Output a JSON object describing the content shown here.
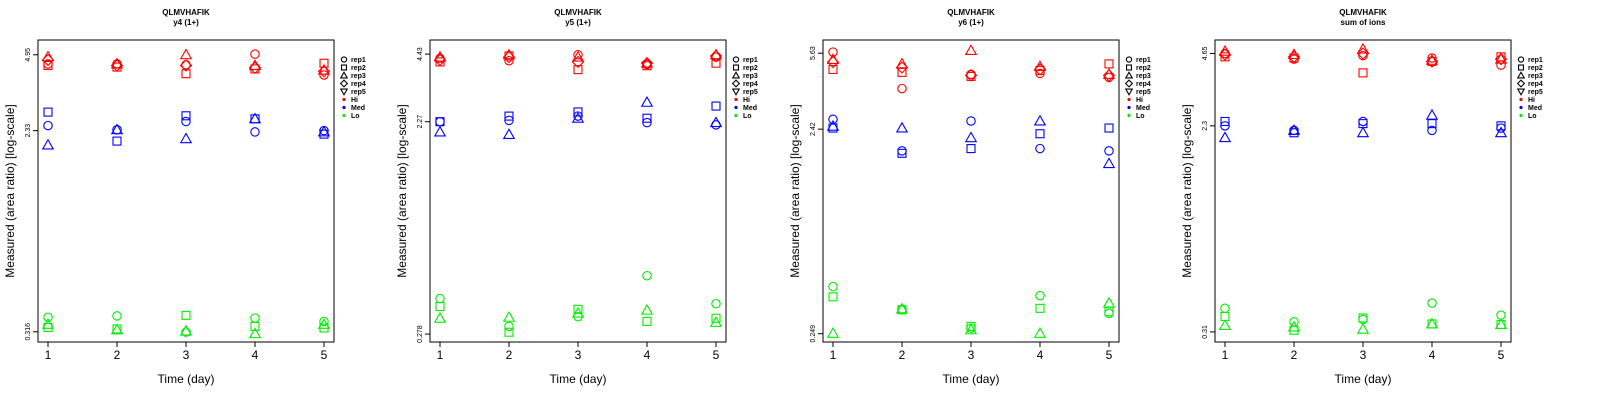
{
  "chart_data": [
    {
      "type": "scatter",
      "title": "QLMVHAFIK",
      "subtitle": "y4 (1+)",
      "xlabel": "Time (day)",
      "ylabel": "Measured (area ratio) [log-scale]",
      "yscale": "log",
      "x": [
        1,
        2,
        3,
        4,
        5
      ],
      "yticks": [
        "4.95",
        "2.33",
        "0.316"
      ],
      "ylim": [
        0.3,
        5.4
      ],
      "series": [
        {
          "name": "Hi rep1",
          "level": "Hi",
          "rep": "rep1",
          "values": [
            4.52,
            4.52,
            4.48,
            4.98,
            4.05
          ]
        },
        {
          "name": "Hi rep2",
          "level": "Hi",
          "rep": "rep2",
          "values": [
            4.45,
            4.38,
            4.1,
            4.3,
            4.55
          ]
        },
        {
          "name": "Hi rep3",
          "level": "Hi",
          "rep": "rep3",
          "values": [
            4.85,
            4.52,
            4.95,
            4.45,
            4.25
          ]
        },
        {
          "name": "Hi rep4",
          "level": "Hi",
          "rep": "rep4",
          "values": [
            4.7,
            4.45,
            4.45,
            4.35,
            4.2
          ]
        },
        {
          "name": "Med rep1",
          "level": "Med",
          "rep": "rep1",
          "values": [
            2.45,
            2.35,
            2.55,
            2.3,
            2.33
          ]
        },
        {
          "name": "Med rep2",
          "level": "Med",
          "rep": "rep2",
          "values": [
            2.8,
            2.1,
            2.7,
            2.62,
            2.25
          ]
        },
        {
          "name": "Med rep3",
          "level": "Med",
          "rep": "rep3",
          "values": [
            2.02,
            2.35,
            2.15,
            2.62,
            2.3
          ]
        },
        {
          "name": "Lo rep1",
          "level": "Lo",
          "rep": "rep1",
          "values": [
            0.365,
            0.37,
            0.315,
            0.362,
            0.35
          ]
        },
        {
          "name": "Lo rep2",
          "level": "Lo",
          "rep": "rep2",
          "values": [
            0.33,
            0.325,
            0.372,
            0.333,
            0.328
          ]
        },
        {
          "name": "Lo rep3",
          "level": "Lo",
          "rep": "rep3",
          "values": [
            0.34,
            0.322,
            0.318,
            0.31,
            0.34
          ]
        }
      ],
      "legend": {
        "position": "right",
        "reps": [
          "rep1",
          "rep2",
          "rep3",
          "rep4",
          "rep5"
        ],
        "levels": [
          "Hi",
          "Med",
          "Lo"
        ]
      }
    },
    {
      "type": "scatter",
      "title": "QLMVHAFIK",
      "subtitle": "y5 (1+)",
      "xlabel": "Time (day)",
      "ylabel": "Measured (area ratio) [log-scale]",
      "yscale": "log",
      "x": [
        1,
        2,
        3,
        4,
        5
      ],
      "yticks": [
        "4.43",
        "2.27",
        "0.278"
      ],
      "ylim": [
        0.27,
        4.8
      ],
      "series": [
        {
          "name": "Hi rep1",
          "level": "Hi",
          "rep": "rep1",
          "values": [
            4.25,
            4.15,
            4.4,
            4.0,
            4.3
          ]
        },
        {
          "name": "Hi rep2",
          "level": "Hi",
          "rep": "rep2",
          "values": [
            4.1,
            4.35,
            3.8,
            3.95,
            4.05
          ]
        },
        {
          "name": "Hi rep3",
          "level": "Hi",
          "rep": "rep3",
          "values": [
            4.3,
            4.4,
            4.3,
            4.05,
            4.4
          ]
        },
        {
          "name": "Hi rep4",
          "level": "Hi",
          "rep": "rep4",
          "values": [
            4.18,
            4.3,
            4.1,
            4.05,
            4.35
          ]
        },
        {
          "name": "Med rep1",
          "level": "Med",
          "rep": "rep1",
          "values": [
            2.27,
            2.3,
            2.4,
            2.25,
            2.2
          ]
        },
        {
          "name": "Med rep2",
          "level": "Med",
          "rep": "rep2",
          "values": [
            2.27,
            2.4,
            2.5,
            2.35,
            2.65
          ]
        },
        {
          "name": "Med rep3",
          "level": "Med",
          "rep": "rep3",
          "values": [
            2.05,
            2.0,
            2.35,
            2.75,
            2.25
          ]
        },
        {
          "name": "Lo rep1",
          "level": "Lo",
          "rep": "rep1",
          "values": [
            0.395,
            0.3,
            0.33,
            0.495,
            0.375
          ]
        },
        {
          "name": "Lo rep2",
          "level": "Lo",
          "rep": "rep2",
          "values": [
            0.365,
            0.283,
            0.355,
            0.315,
            0.325
          ]
        },
        {
          "name": "Lo rep3",
          "level": "Lo",
          "rep": "rep3",
          "values": [
            0.325,
            0.328,
            0.342,
            0.352,
            0.312
          ]
        }
      ],
      "legend": {
        "position": "right",
        "reps": [
          "rep1",
          "rep2",
          "rep3",
          "rep4",
          "rep5"
        ],
        "levels": [
          "Hi",
          "Med",
          "Lo"
        ]
      }
    },
    {
      "type": "scatter",
      "title": "QLMVHAFIK",
      "subtitle": "y6 (1+)",
      "xlabel": "Time (day)",
      "ylabel": "Measured (area ratio) [log-scale]",
      "yscale": "log",
      "x": [
        1,
        2,
        3,
        4,
        5
      ],
      "yticks": [
        "5.63",
        "2.42",
        "0.249"
      ],
      "ylim": [
        0.24,
        6.1
      ],
      "series": [
        {
          "name": "Hi rep1",
          "level": "Hi",
          "rep": "rep1",
          "values": [
            5.7,
            3.8,
            4.45,
            4.5,
            4.3
          ]
        },
        {
          "name": "Hi rep2",
          "level": "Hi",
          "rep": "rep2",
          "values": [
            4.7,
            4.55,
            4.35,
            4.65,
            5.0
          ]
        },
        {
          "name": "Hi rep3",
          "level": "Hi",
          "rep": "rep3",
          "values": [
            5.25,
            5.0,
            5.8,
            4.85,
            4.45
          ]
        },
        {
          "name": "Hi rep4",
          "level": "Hi",
          "rep": "rep4",
          "values": [
            5.1,
            4.8,
            4.4,
            4.7,
            4.4
          ]
        },
        {
          "name": "Med rep1",
          "level": "Med",
          "rep": "rep1",
          "values": [
            2.7,
            1.9,
            2.65,
            1.95,
            1.9
          ]
        },
        {
          "name": "Med rep2",
          "level": "Med",
          "rep": "rep2",
          "values": [
            2.45,
            1.85,
            1.95,
            2.3,
            2.45
          ]
        },
        {
          "name": "Med rep3",
          "level": "Med",
          "rep": "rep3",
          "values": [
            2.5,
            2.45,
            2.2,
            2.65,
            1.65
          ]
        },
        {
          "name": "Lo rep1",
          "level": "Lo",
          "rep": "rep1",
          "values": [
            0.42,
            0.325,
            0.265,
            0.38,
            0.312
          ]
        },
        {
          "name": "Lo rep2",
          "level": "Lo",
          "rep": "rep2",
          "values": [
            0.375,
            0.325,
            0.27,
            0.33,
            0.318
          ]
        },
        {
          "name": "Lo rep3",
          "level": "Lo",
          "rep": "rep3",
          "values": [
            0.25,
            0.328,
            0.26,
            0.25,
            0.35
          ]
        }
      ],
      "legend": {
        "position": "right",
        "reps": [
          "rep1",
          "rep2",
          "rep3",
          "rep4",
          "rep5"
        ],
        "levels": [
          "Hi",
          "Med",
          "Lo"
        ]
      }
    },
    {
      "type": "scatter",
      "title": "QLMVHAFIK",
      "subtitle": "sum of ions",
      "xlabel": "Time (day)",
      "ylabel": "Measured (area ratio) [log-scale]",
      "yscale": "log",
      "x": [
        1,
        2,
        3,
        4,
        5
      ],
      "yticks": [
        "4.65",
        "2.3",
        "0.31"
      ],
      "ylim": [
        0.295,
        5.0
      ],
      "series": [
        {
          "name": "Hi rep1",
          "level": "Hi",
          "rep": "rep1",
          "values": [
            4.65,
            4.4,
            4.55,
            4.45,
            4.15
          ]
        },
        {
          "name": "Hi rep2",
          "level": "Hi",
          "rep": "rep2",
          "values": [
            4.5,
            4.45,
            3.85,
            4.3,
            4.5
          ]
        },
        {
          "name": "Hi rep3",
          "level": "Hi",
          "rep": "rep3",
          "values": [
            4.75,
            4.6,
            4.85,
            4.35,
            4.4
          ]
        },
        {
          "name": "Hi rep4",
          "level": "Hi",
          "rep": "rep4",
          "values": [
            4.6,
            4.5,
            4.65,
            4.3,
            4.4
          ]
        },
        {
          "name": "Med rep1",
          "level": "Med",
          "rep": "rep1",
          "values": [
            2.3,
            2.2,
            2.4,
            2.2,
            2.25
          ]
        },
        {
          "name": "Med rep2",
          "level": "Med",
          "rep": "rep2",
          "values": [
            2.4,
            2.15,
            2.35,
            2.35,
            2.3
          ]
        },
        {
          "name": "Med rep3",
          "level": "Med",
          "rep": "rep3",
          "values": [
            2.05,
            2.2,
            2.15,
            2.55,
            2.15
          ]
        },
        {
          "name": "Lo rep1",
          "level": "Lo",
          "rep": "rep1",
          "values": [
            0.39,
            0.342,
            0.35,
            0.41,
            0.365
          ]
        },
        {
          "name": "Lo rep2",
          "level": "Lo",
          "rep": "rep2",
          "values": [
            0.36,
            0.315,
            0.355,
            0.335,
            0.333
          ]
        },
        {
          "name": "Lo rep3",
          "level": "Lo",
          "rep": "rep3",
          "values": [
            0.33,
            0.325,
            0.318,
            0.335,
            0.333
          ]
        }
      ],
      "legend": {
        "position": "right",
        "reps": [
          "rep1",
          "rep2",
          "rep3",
          "rep4",
          "rep5"
        ],
        "levels": [
          "Hi",
          "Med",
          "Lo"
        ]
      }
    }
  ],
  "colors": {
    "Hi": "#ff0000",
    "Med": "#0000ff",
    "Lo": "#00ee00",
    "axis": "#000000"
  },
  "markers": {
    "rep1": "circle",
    "rep2": "square",
    "rep3": "triangle-up",
    "rep4": "diamond",
    "rep5": "triangle-down"
  },
  "legend_symbols": {
    "rep": "marker-outline",
    "level": "filled-dot"
  }
}
